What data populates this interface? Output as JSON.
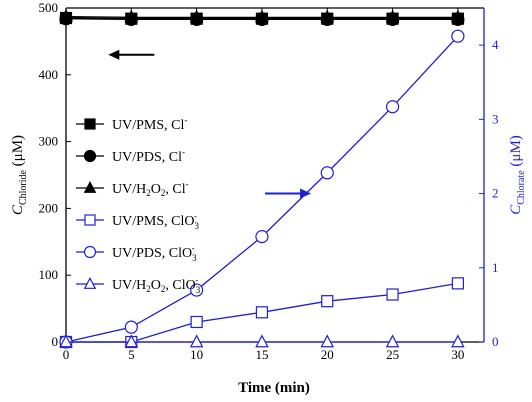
{
  "chart_data": {
    "type": "scatter",
    "xlabel": "Time (min)",
    "ylabel_left": {
      "main": "C",
      "sub": "Chloride",
      "unit": " (μM)"
    },
    "ylabel_right": {
      "main": "C",
      "sub": "Chlorate",
      "unit": " (μM)"
    },
    "xlim": [
      0,
      32
    ],
    "ylim_left": [
      0,
      500
    ],
    "ylim_right": [
      0,
      4.5
    ],
    "xticks": [
      0,
      5,
      10,
      15,
      20,
      25,
      30
    ],
    "yticks_left": [
      0,
      100,
      200,
      300,
      400,
      500
    ],
    "yticks_right": [
      0,
      1,
      2,
      3,
      4
    ],
    "grid": false,
    "legend_position": "left",
    "colors": {
      "black": "#000000",
      "blue": "#1f1fd6"
    },
    "series": [
      {
        "name": "UV/PMS, Cl⁻",
        "axis": "left",
        "marker": "square",
        "filled": true,
        "color": "#000000",
        "x": [
          0,
          5,
          10,
          15,
          20,
          25,
          30
        ],
        "y": [
          485,
          484,
          484,
          484,
          484,
          484,
          484
        ]
      },
      {
        "name": "UV/PDS, Cl⁻",
        "axis": "left",
        "marker": "circle",
        "filled": true,
        "color": "#000000",
        "x": [
          0,
          5,
          10,
          15,
          20,
          25,
          30
        ],
        "y": [
          484,
          483,
          483,
          483,
          483,
          483,
          483
        ]
      },
      {
        "name": "UV/H₂O₂, Cl⁻",
        "axis": "left",
        "marker": "triangle",
        "filled": true,
        "color": "#000000",
        "x": [
          0,
          5,
          10,
          15,
          20,
          25,
          30
        ],
        "y": [
          487,
          486,
          486,
          486,
          486,
          486,
          486
        ]
      },
      {
        "name": "UV/PMS, ClO₃⁻",
        "axis": "right",
        "marker": "square",
        "filled": false,
        "color": "#1f1fd6",
        "x": [
          0,
          5,
          10,
          15,
          20,
          25,
          30
        ],
        "y": [
          0,
          0,
          0.27,
          0.4,
          0.55,
          0.64,
          0.79
        ]
      },
      {
        "name": "UV/PDS, ClO₃⁻",
        "axis": "right",
        "marker": "circle",
        "filled": false,
        "color": "#1f1fd6",
        "x": [
          0,
          5,
          10,
          15,
          20,
          25,
          30
        ],
        "y": [
          0,
          0.2,
          0.7,
          1.42,
          2.28,
          3.17,
          4.12
        ]
      },
      {
        "name": "UV/H₂O₂, ClO₃⁻",
        "axis": "right",
        "marker": "triangle",
        "filled": false,
        "color": "#1f1fd6",
        "x": [
          0,
          5,
          10,
          15,
          20,
          25,
          30
        ],
        "y": [
          0,
          0,
          0,
          0,
          0,
          0,
          0
        ]
      }
    ],
    "legend": [
      {
        "prefix": "UV/PMS, ",
        "species": "Cl",
        "sub": "",
        "sup": "-",
        "marker": "square",
        "filled": true,
        "color": "#000000"
      },
      {
        "prefix": "UV/PDS, ",
        "species": "Cl",
        "sub": "",
        "sup": "-",
        "marker": "circle",
        "filled": true,
        "color": "#000000"
      },
      {
        "prefix": "UV/H",
        "prefix_sub": "2",
        "prefix_mid": "O",
        "prefix_sub2": "2",
        "prefix_end": ", ",
        "species": "Cl",
        "sub": "",
        "sup": "-",
        "marker": "triangle",
        "filled": true,
        "color": "#000000"
      },
      {
        "prefix": "UV/PMS, ",
        "species": "ClO",
        "sub": "3",
        "sup": "-",
        "marker": "square",
        "filled": false,
        "color": "#1f1fd6"
      },
      {
        "prefix": "UV/PDS, ",
        "species": "ClO",
        "sub": "3",
        "sup": "-",
        "marker": "circle",
        "filled": false,
        "color": "#1f1fd6"
      },
      {
        "prefix": "UV/H",
        "prefix_sub": "2",
        "prefix_mid": "O",
        "prefix_sub2": "2",
        "prefix_end": ", ",
        "species": "ClO",
        "sub": "3",
        "sup": "-",
        "marker": "triangle",
        "filled": false,
        "color": "#1f1fd6"
      }
    ],
    "annotations": [
      {
        "type": "arrow",
        "direction": "left",
        "color": "#000000",
        "at": {
          "x": 5,
          "y_left": 430
        }
      },
      {
        "type": "arrow",
        "direction": "right",
        "color": "#1f1fd6",
        "at": {
          "x": 17,
          "y_right": 2.0
        }
      }
    ]
  }
}
